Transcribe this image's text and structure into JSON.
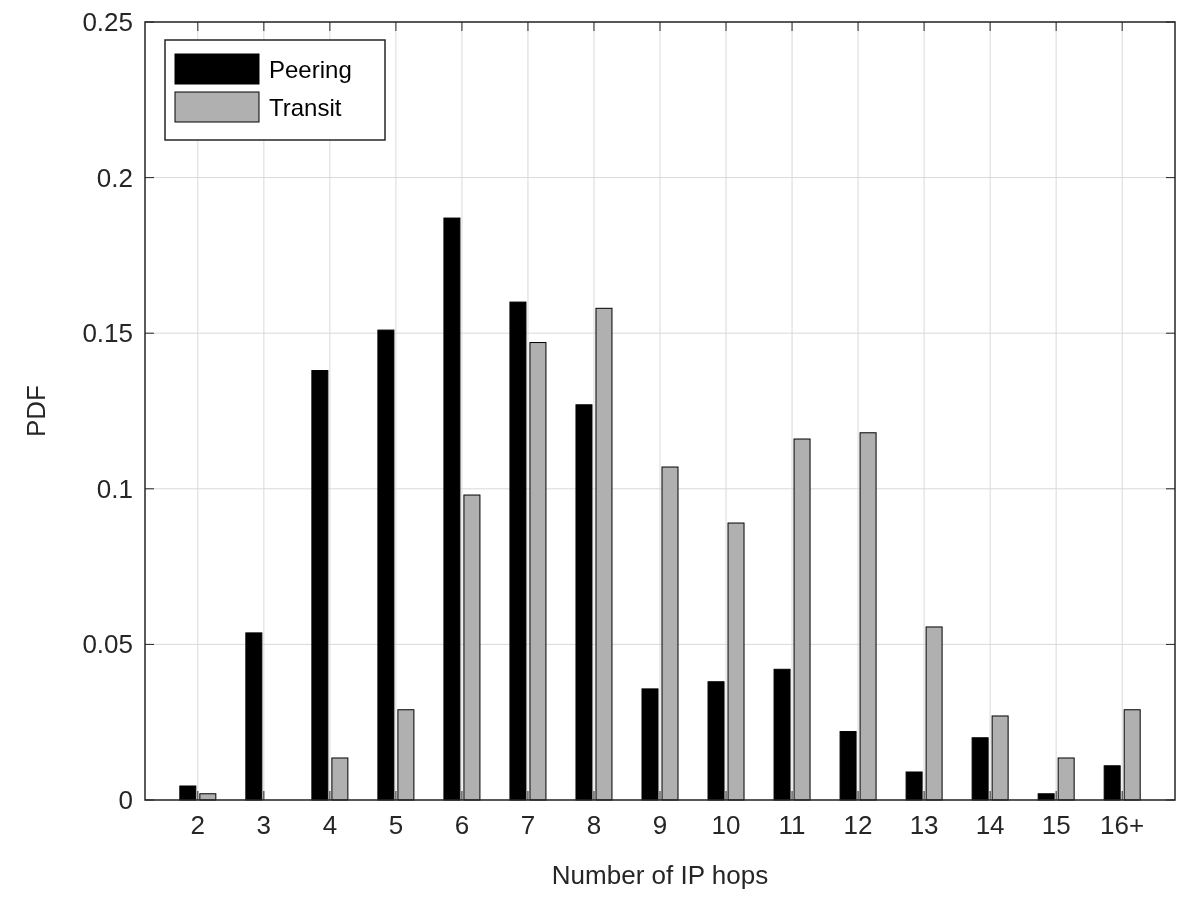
{
  "chart_data": {
    "type": "bar",
    "xlabel": "Number of IP hops",
    "ylabel": "PDF",
    "categories": [
      "2",
      "3",
      "4",
      "5",
      "6",
      "7",
      "8",
      "9",
      "10",
      "11",
      "12",
      "13",
      "14",
      "15",
      "16+"
    ],
    "series": [
      {
        "name": "Peering",
        "color": "#000000",
        "values": [
          0.0045,
          0.0537,
          0.138,
          0.151,
          0.187,
          0.16,
          0.127,
          0.0357,
          0.038,
          0.042,
          0.022,
          0.009,
          0.02,
          0.002,
          0.011
        ]
      },
      {
        "name": "Transit",
        "color": "#b0b0b0",
        "values": [
          0.002,
          0,
          0.0135,
          0.029,
          0.098,
          0.147,
          0.158,
          0.107,
          0.089,
          0.116,
          0.118,
          0.0556,
          0.027,
          0.0135,
          0.029
        ]
      }
    ],
    "ylim": [
      0,
      0.25
    ],
    "yticks": [
      0,
      0.05,
      0.1,
      0.15,
      0.2,
      0.25
    ],
    "grid": true,
    "legend": "top left"
  }
}
